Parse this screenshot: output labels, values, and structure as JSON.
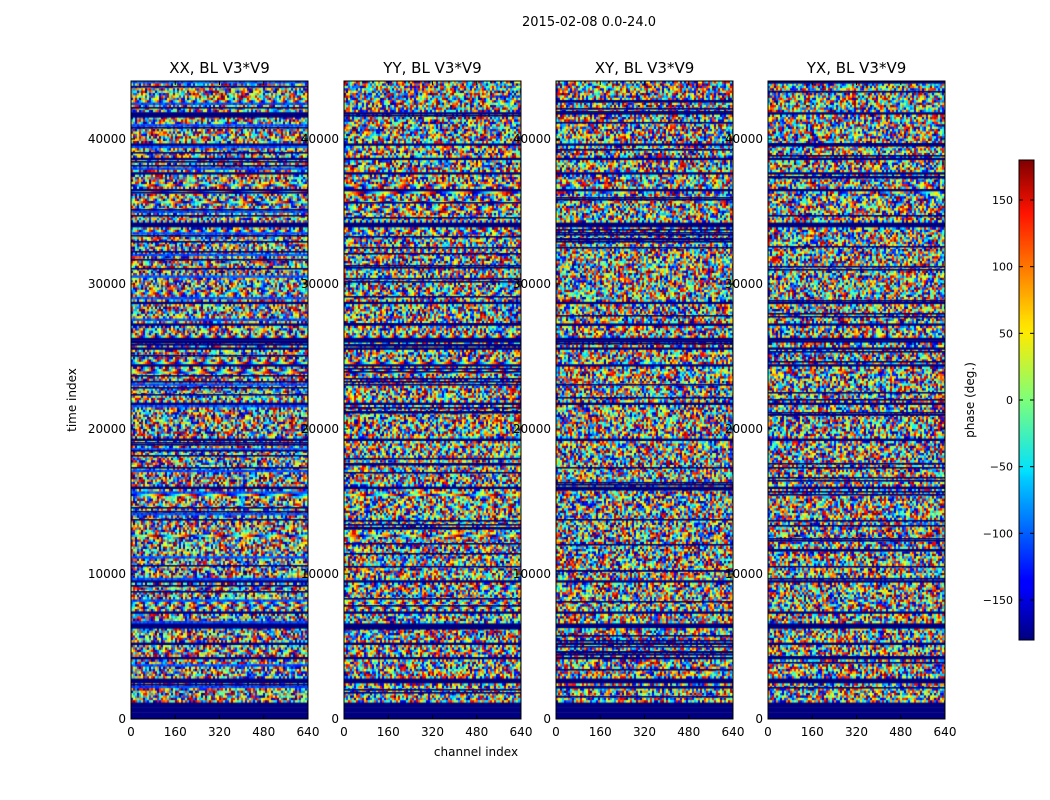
{
  "chart_data": {
    "type": "heatmap",
    "suptitle": "2015-02-08 0.0-24.0",
    "xlabel": "channel index",
    "ylabel": "time index",
    "xlim": [
      0,
      640
    ],
    "ylim": [
      0,
      44000
    ],
    "xticks": [
      0,
      160,
      320,
      480,
      640
    ],
    "yticks": [
      0,
      10000,
      20000,
      30000,
      40000
    ],
    "panels": [
      {
        "title": "XX, BL V3*V9",
        "pol": "XX"
      },
      {
        "title": "YY, BL V3*V9",
        "pol": "YY"
      },
      {
        "title": "XY, BL V3*V9",
        "pol": "XY"
      },
      {
        "title": "YX, BL V3*V9",
        "pol": "YX"
      }
    ],
    "colorbar": {
      "label": "phase (deg.)",
      "range": [
        -180,
        180
      ],
      "ticks": [
        -150,
        -100,
        -50,
        0,
        50,
        100,
        150
      ],
      "tick_labels": [
        "−150",
        "−100",
        "−50",
        "0",
        "50",
        "100",
        "150"
      ],
      "colormap": "jet"
    },
    "low_time_flagged_band": [
      0,
      800
    ]
  }
}
